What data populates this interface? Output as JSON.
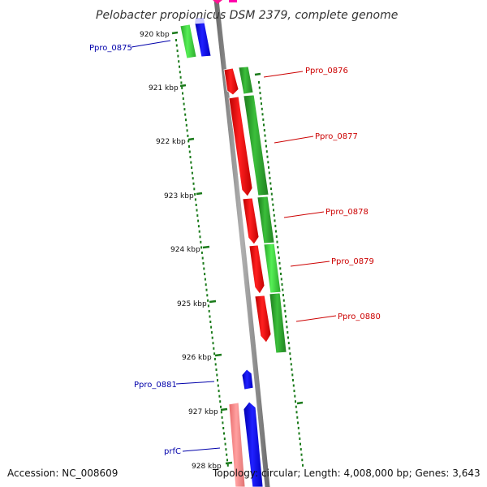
{
  "title": "Pelobacter propionicus DSM 2379, complete genome",
  "footer": {
    "accession": "Accession: NC_008609",
    "summary": "Topology: circular; Length: 4,008,000 bp; Genes: 3,643"
  },
  "ticks": [
    "920 kbp",
    "921 kbp",
    "922 kbp",
    "923 kbp",
    "924 kbp",
    "925 kbp",
    "926 kbp",
    "927 kbp",
    "928 kbp"
  ],
  "genes": {
    "left": [
      "Ppro_0875",
      "Ppro_0881",
      "prfC"
    ],
    "right": [
      "Ppro_0876",
      "Ppro_0877",
      "Ppro_0878",
      "Ppro_0879",
      "Ppro_0880"
    ]
  },
  "colors": {
    "forward_cds": "#ff0000",
    "forward_gene": "#2fa52f",
    "reverse_cds": "#0000ff",
    "reverse_gene_light": "#3cd83c",
    "pale_red": "#f08080",
    "backbone": "#8a8a8a",
    "left_label": "#0000aa",
    "right_label": "#cc0000"
  }
}
